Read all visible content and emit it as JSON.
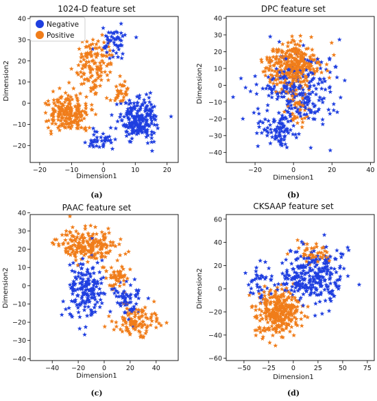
{
  "colors": {
    "negative": "#1f3fe0",
    "positive": "#f07d1a",
    "axis": "#000000"
  },
  "legend": {
    "negative": "Negative",
    "positive": "Positive"
  },
  "chart_data": [
    {
      "type": "scatter",
      "panel": "a",
      "caption": "(a)",
      "title": "1024-D feature set",
      "xlabel": "Dimension1",
      "ylabel": "Dimension2",
      "xlim": [
        -23,
        23.5
      ],
      "ylim": [
        -28,
        41
      ],
      "xticks": [
        -20,
        -10,
        0,
        10,
        20
      ],
      "yticks": [
        -20,
        -10,
        0,
        10,
        20,
        30,
        40
      ],
      "legend_position": "top-left",
      "series": [
        {
          "name": "Negative",
          "clusters": [
            {
              "center": [
                11,
                -8
              ],
              "spread": [
                6,
                9
              ],
              "count": 220
            },
            {
              "center": [
                4,
                28
              ],
              "spread": [
                4,
                7
              ],
              "count": 50
            },
            {
              "center": [
                -1,
                -18
              ],
              "spread": [
                4,
                5
              ],
              "count": 40
            }
          ]
        },
        {
          "name": "Positive",
          "clusters": [
            {
              "center": [
                -11,
                -4
              ],
              "spread": [
                6,
                8
              ],
              "count": 200
            },
            {
              "center": [
                -3,
                18
              ],
              "spread": [
                5,
                12
              ],
              "count": 130
            },
            {
              "center": [
                6,
                5
              ],
              "spread": [
                3,
                5
              ],
              "count": 30
            }
          ]
        }
      ]
    },
    {
      "type": "scatter",
      "panel": "b",
      "caption": "(b)",
      "title": "DPC feature set",
      "xlabel": "Dimension1",
      "ylabel": "Dimension2",
      "xlim": [
        -35,
        42
      ],
      "ylim": [
        -46,
        41
      ],
      "xticks": [
        -20,
        0,
        20,
        40
      ],
      "yticks": [
        -40,
        -30,
        -20,
        -10,
        0,
        10,
        20,
        30,
        40
      ],
      "legend_position": "none",
      "series": [
        {
          "name": "Negative",
          "clusters": [
            {
              "center": [
                2,
                -5
              ],
              "spread": [
                18,
                20
              ],
              "count": 260
            },
            {
              "center": [
                -8,
                -28
              ],
              "spread": [
                8,
                8
              ],
              "count": 70
            }
          ]
        },
        {
          "name": "Positive",
          "clusters": [
            {
              "center": [
                0,
                12
              ],
              "spread": [
                13,
                12
              ],
              "count": 330
            },
            {
              "center": [
                2,
                -15
              ],
              "spread": [
                5,
                9
              ],
              "count": 40
            }
          ]
        }
      ]
    },
    {
      "type": "scatter",
      "panel": "c",
      "caption": "(c)",
      "title": "PAAC feature set",
      "xlabel": "Dimension1",
      "ylabel": "Dimension2",
      "xlim": [
        -57,
        57
      ],
      "ylim": [
        -41,
        39
      ],
      "xticks": [
        -40,
        -20,
        0,
        20,
        40
      ],
      "yticks": [
        -40,
        -30,
        -20,
        -10,
        0,
        10,
        20,
        30,
        40
      ],
      "legend_position": "none",
      "series": [
        {
          "name": "Negative",
          "clusters": [
            {
              "center": [
                -15,
                -3
              ],
              "spread": [
                12,
                14
              ],
              "count": 170
            },
            {
              "center": [
                18,
                -8
              ],
              "spread": [
                10,
                9
              ],
              "count": 60
            }
          ]
        },
        {
          "name": "Positive",
          "clusters": [
            {
              "center": [
                -12,
                22
              ],
              "spread": [
                20,
                8
              ],
              "count": 200
            },
            {
              "center": [
                25,
                -20
              ],
              "spread": [
                15,
                8
              ],
              "count": 110
            },
            {
              "center": [
                10,
                5
              ],
              "spread": [
                8,
                6
              ],
              "count": 50
            }
          ]
        }
      ]
    },
    {
      "type": "scatter",
      "panel": "d",
      "caption": "(d)",
      "title": "CKSAAP feature set",
      "xlabel": "Dimension1",
      "ylabel": "Dimension2",
      "xlim": [
        -68,
        82
      ],
      "ylim": [
        -62,
        64
      ],
      "xticks": [
        -50,
        -25,
        0,
        25,
        50,
        75
      ],
      "yticks": [
        -60,
        -40,
        -20,
        0,
        20,
        40,
        60
      ],
      "legend_position": "none",
      "series": [
        {
          "name": "Negative",
          "clusters": [
            {
              "center": [
                20,
                10
              ],
              "spread": [
                28,
                22
              ],
              "count": 270
            },
            {
              "center": [
                -30,
                5
              ],
              "spread": [
                15,
                15
              ],
              "count": 40
            }
          ]
        },
        {
          "name": "Positive",
          "clusters": [
            {
              "center": [
                -15,
                -20
              ],
              "spread": [
                20,
                18
              ],
              "count": 300
            },
            {
              "center": [
                20,
                30
              ],
              "spread": [
                15,
                10
              ],
              "count": 40
            }
          ]
        }
      ]
    }
  ]
}
